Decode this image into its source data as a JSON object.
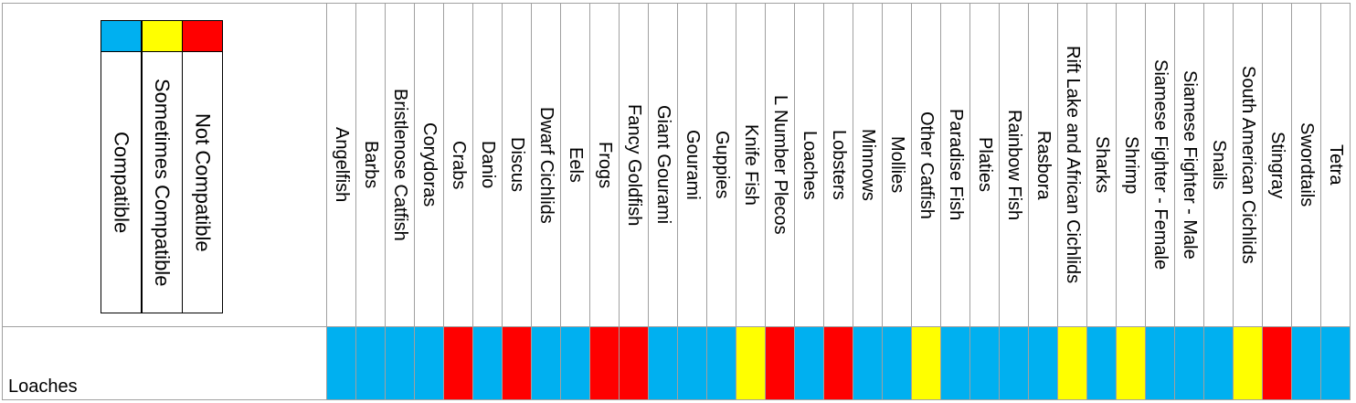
{
  "legend": [
    {
      "label": "Compatible",
      "color": "#00b0f0"
    },
    {
      "label": "Sometimes Compatible",
      "color": "#ffff00"
    },
    {
      "label": "Not Compatible",
      "color": "#ff0000"
    }
  ],
  "columns": [
    "Angelfish",
    "Barbs",
    "Bristlenose Catfish",
    "Corydoras",
    "Crabs",
    "Danio",
    "Discus",
    "Dwarf Cichlids",
    "Eels",
    "Frogs",
    "Fancy Goldfish",
    "Giant Gourami",
    "Gourami",
    "Guppies",
    "Knife Fish",
    "L Number Plecos",
    "Loaches",
    "Lobsters",
    "Minnows",
    "Mollies",
    "Other Catfish",
    "Paradise Fish",
    "Platies",
    "Rainbow Fish",
    "Rasbora",
    "Rift Lake and African Cichlids",
    "Sharks",
    "Shrimp",
    "Siamese Fighter - Female",
    "Siamese Fighter - Male",
    "Snails",
    "South American Cichlids",
    "Stingray",
    "Swordtails",
    "Tetra"
  ],
  "rows": [
    {
      "label": "Loaches",
      "cells": [
        "#00b0f0",
        "#00b0f0",
        "#00b0f0",
        "#00b0f0",
        "#ff0000",
        "#00b0f0",
        "#ff0000",
        "#00b0f0",
        "#00b0f0",
        "#ff0000",
        "#ff0000",
        "#00b0f0",
        "#00b0f0",
        "#00b0f0",
        "#ffff00",
        "#ff0000",
        "#00b0f0",
        "#ff0000",
        "#00b0f0",
        "#00b0f0",
        "#ffff00",
        "#00b0f0",
        "#00b0f0",
        "#00b0f0",
        "#00b0f0",
        "#ffff00",
        "#00b0f0",
        "#ffff00",
        "#00b0f0",
        "#00b0f0",
        "#00b0f0",
        "#ffff00",
        "#ff0000",
        "#00b0f0",
        "#00b0f0"
      ]
    }
  ]
}
